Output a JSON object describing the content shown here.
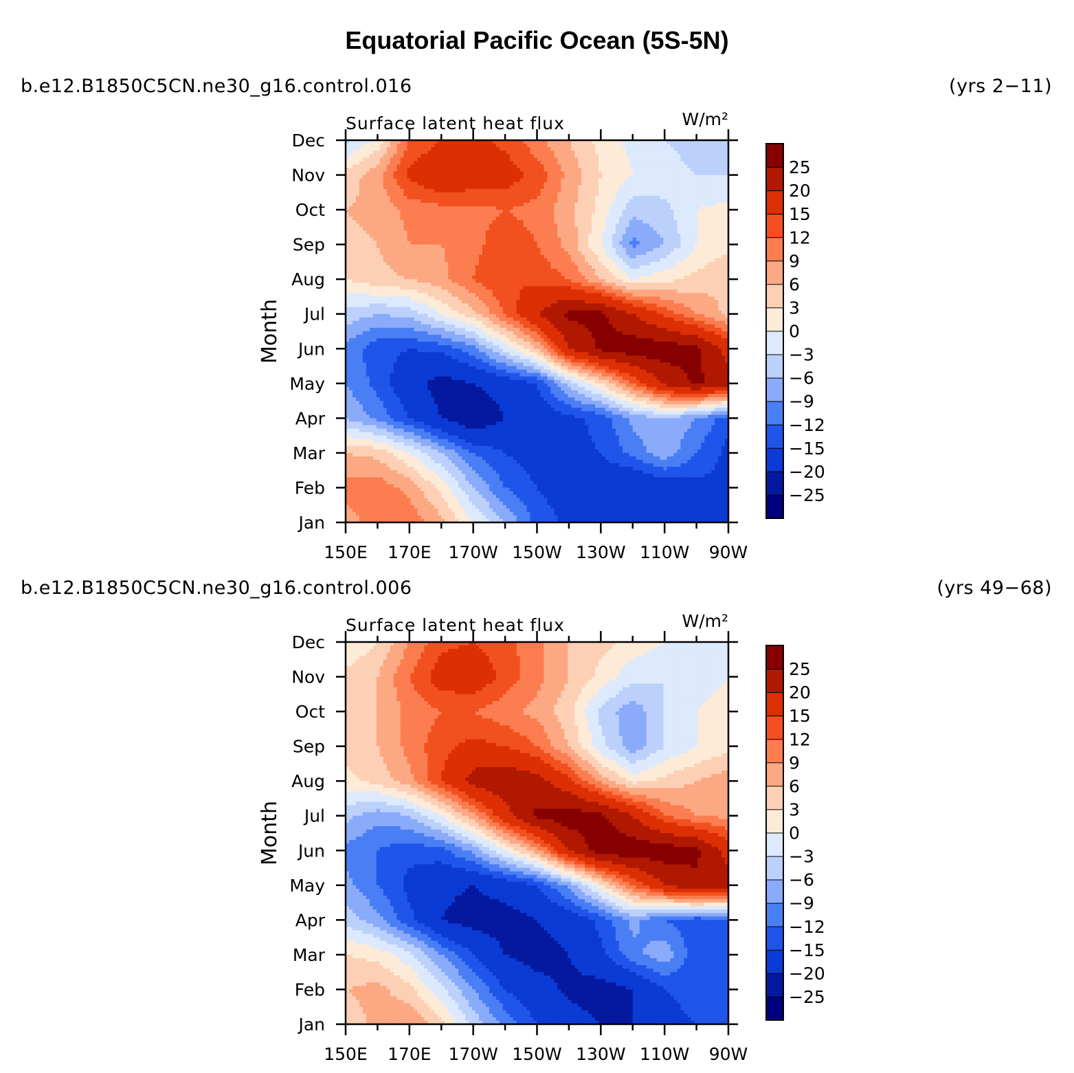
{
  "title": "Equatorial Pacific Ocean (5S-5N)",
  "palette": [
    "#00007e",
    "#0419a0",
    "#0b3ad4",
    "#1f55ea",
    "#4a7ef4",
    "#8aabfa",
    "#bcd0fc",
    "#dde9fd",
    "#fdebd8",
    "#fdd0b5",
    "#fca883",
    "#fb7d50",
    "#f2501e",
    "#dc2f04",
    "#b01800",
    "#870000"
  ],
  "chart_data": [
    {
      "type": "heatmap",
      "case": "b.e12.B1850C5CN.ne30_g16.control.016",
      "years": "(yrs 2−11)",
      "title": "Surface latent heat flux",
      "units": "W/m²",
      "ylabel": "Month",
      "x_tick_labels": [
        "150E",
        "170E",
        "170W",
        "150W",
        "130W",
        "110W",
        "90W"
      ],
      "y_tick_labels": [
        "Jan",
        "Feb",
        "Mar",
        "Apr",
        "May",
        "Jun",
        "Jul",
        "Aug",
        "Sep",
        "Oct",
        "Nov",
        "Dec"
      ],
      "xlim_deg_east": [
        150,
        270
      ],
      "color_levels": [
        "25",
        "20",
        "15",
        "12",
        "9",
        "6",
        "3",
        "0",
        "−3",
        "−6",
        "−9",
        "−12",
        "−15",
        "−20",
        "−25"
      ],
      "lon_deg_east": [
        150,
        160,
        170,
        180,
        190,
        200,
        210,
        220,
        230,
        240,
        250,
        260,
        270
      ],
      "months": [
        "Jan",
        "Feb",
        "Mar",
        "Apr",
        "May",
        "Jun",
        "Jul",
        "Aug",
        "Sep",
        "Oct",
        "Nov",
        "Dec"
      ],
      "values": [
        [
          8,
          10,
          11,
          7,
          0,
          -6,
          -13,
          -16,
          -18,
          -17,
          -16,
          -15,
          -15
        ],
        [
          10,
          11,
          8,
          2,
          -6,
          -12,
          -15,
          -17,
          -18,
          -20,
          -18,
          -16,
          -16
        ],
        [
          6,
          5,
          0,
          -6,
          -12,
          -15,
          -17,
          -16,
          -15,
          -11,
          -7,
          -12,
          -16
        ],
        [
          -6,
          -10,
          -15,
          -20,
          -24,
          -20,
          -18,
          -16,
          -14,
          -8,
          -6,
          -9,
          -14
        ],
        [
          -9,
          -13,
          -18,
          -22,
          -20,
          -18,
          -15,
          -5,
          3,
          12,
          21,
          26,
          22
        ],
        [
          -10,
          -14,
          -15,
          -14,
          -10,
          -2,
          6,
          20,
          26,
          28,
          28,
          26,
          18
        ],
        [
          -4,
          -6,
          -5,
          0,
          5,
          12,
          20,
          26,
          26,
          20,
          14,
          9,
          5
        ],
        [
          3,
          5,
          6,
          8,
          12,
          15,
          14,
          12,
          6,
          0,
          2,
          4,
          6
        ],
        [
          5,
          6,
          9,
          9,
          11,
          14,
          12,
          8,
          0,
          -10,
          -6,
          0,
          2
        ],
        [
          6,
          7,
          10,
          11,
          11,
          12,
          11,
          7,
          2,
          -5,
          -4,
          0,
          1
        ],
        [
          4,
          8,
          16,
          19,
          18,
          17,
          14,
          8,
          3,
          0,
          -1,
          -3,
          -3
        ],
        [
          -4,
          1,
          12,
          15,
          16,
          14,
          10,
          6,
          2,
          -1,
          -3,
          -5,
          -6
        ]
      ]
    },
    {
      "type": "heatmap",
      "case": "b.e12.B1850C5CN.ne30_g16.control.006",
      "years": "(yrs 49−68)",
      "title": "Surface latent heat flux",
      "units": "W/m²",
      "ylabel": "Month",
      "x_tick_labels": [
        "150E",
        "170E",
        "170W",
        "150W",
        "130W",
        "110W",
        "90W"
      ],
      "y_tick_labels": [
        "Jan",
        "Feb",
        "Mar",
        "Apr",
        "May",
        "Jun",
        "Jul",
        "Aug",
        "Sep",
        "Oct",
        "Nov",
        "Dec"
      ],
      "xlim_deg_east": [
        150,
        270
      ],
      "color_levels": [
        "25",
        "20",
        "15",
        "12",
        "9",
        "6",
        "3",
        "0",
        "−3",
        "−6",
        "−9",
        "−12",
        "−15",
        "−20",
        "−25"
      ],
      "lon_deg_east": [
        150,
        160,
        170,
        180,
        190,
        200,
        210,
        220,
        230,
        240,
        250,
        260,
        270
      ],
      "months": [
        "Jan",
        "Feb",
        "Mar",
        "Apr",
        "May",
        "Jun",
        "Jul",
        "Aug",
        "Sep",
        "Oct",
        "Nov",
        "Dec"
      ],
      "values": [
        [
          4,
          7,
          9,
          4,
          -4,
          -10,
          -15,
          -18,
          -20,
          -20,
          -16,
          -15,
          -15
        ],
        [
          6,
          7,
          4,
          -2,
          -9,
          -15,
          -18,
          -21,
          -22,
          -20,
          -15,
          -14,
          -14
        ],
        [
          3,
          2,
          -2,
          -9,
          -15,
          -20,
          -22,
          -20,
          -16,
          -10,
          -7,
          -14,
          -14
        ],
        [
          -4,
          -8,
          -14,
          -20,
          -22,
          -22,
          -20,
          -18,
          -14,
          -8,
          -12,
          -14,
          -13
        ],
        [
          -8,
          -12,
          -16,
          -19,
          -20,
          -18,
          -15,
          -8,
          2,
          12,
          20,
          24,
          22
        ],
        [
          -10,
          -12,
          -14,
          -13,
          -8,
          0,
          8,
          20,
          28,
          28,
          28,
          26,
          18
        ],
        [
          -5,
          -8,
          -6,
          0,
          8,
          18,
          26,
          28,
          26,
          20,
          12,
          9,
          8
        ],
        [
          2,
          4,
          8,
          15,
          22,
          24,
          22,
          16,
          8,
          2,
          4,
          6,
          8
        ],
        [
          4,
          6,
          10,
          14,
          16,
          15,
          12,
          6,
          -2,
          -8,
          -3,
          0,
          2
        ],
        [
          5,
          6,
          10,
          12,
          12,
          10,
          8,
          4,
          -4,
          -8,
          -3,
          0,
          2
        ],
        [
          4,
          6,
          12,
          17,
          18,
          14,
          10,
          6,
          2,
          -2,
          -3,
          -2,
          0
        ],
        [
          0,
          3,
          9,
          14,
          15,
          13,
          10,
          6,
          4,
          2,
          0,
          -2,
          -3
        ]
      ]
    }
  ]
}
